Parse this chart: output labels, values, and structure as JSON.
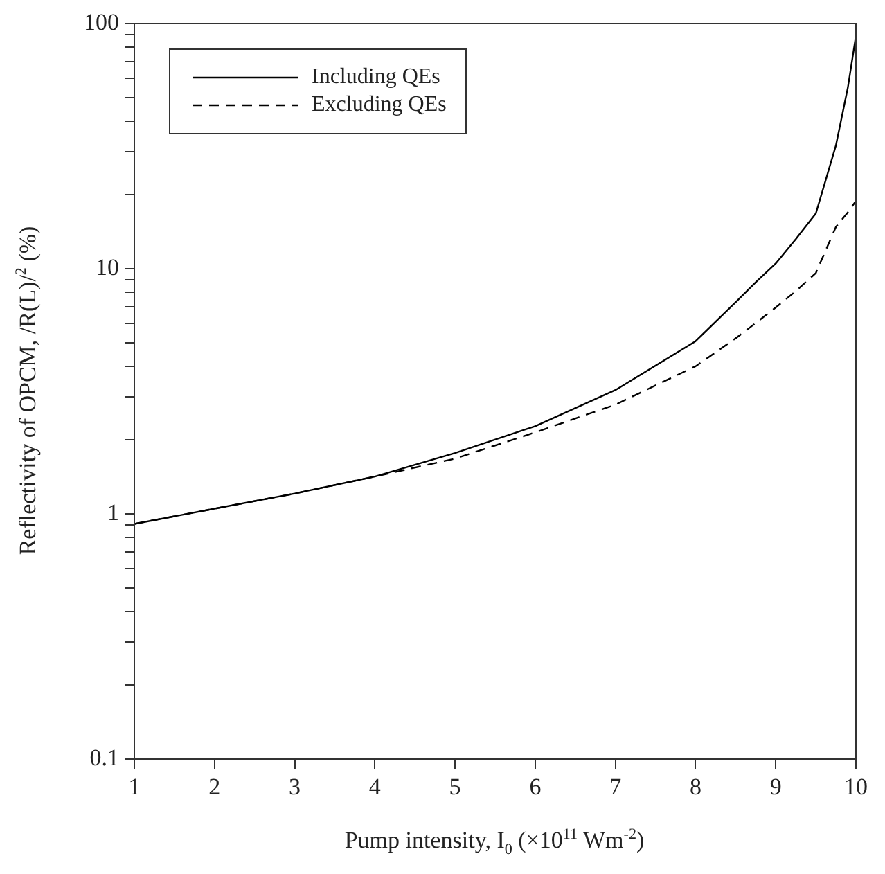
{
  "chart_data": {
    "type": "line",
    "xlabel": "Pump intensity, I$_{0}$ (×10$^{11}$ Wm$^{-2}$)",
    "ylabel": "Reflectivity of OPCM, /R(L)/$^{2}$ (%)",
    "x": [
      1,
      2,
      3,
      4,
      5,
      6,
      7,
      8,
      8.5,
      8.75,
      9,
      9.25,
      9.5,
      9.75,
      9.9,
      10
    ],
    "series": [
      {
        "name": "Including QEs",
        "color": "#000000",
        "line_style": "solid",
        "values": [
          0.91,
          1.05,
          1.21,
          1.42,
          1.77,
          2.28,
          3.2,
          5.06,
          7.3,
          8.8,
          10.5,
          13.2,
          16.8,
          31.8,
          55,
          89
        ]
      },
      {
        "name": "Excluding QEs",
        "color": "#000000",
        "line_style": "dashed",
        "values": [
          0.91,
          1.05,
          1.21,
          1.42,
          1.68,
          2.15,
          2.79,
          4.0,
          5.2,
          6.0,
          6.95,
          8.1,
          9.6,
          14.8,
          17,
          18.9
        ]
      }
    ],
    "xlim": [
      1,
      10
    ],
    "xticks": [
      1,
      2,
      3,
      4,
      5,
      6,
      7,
      8,
      9,
      10
    ],
    "ylim": [
      0.1,
      100
    ],
    "yticks": [
      0.1,
      {
        "value": 0.2,
        "label": null
      },
      {
        "value": 0.3,
        "label": null
      },
      {
        "value": 0.4,
        "label": null
      },
      {
        "value": 0.5,
        "label": null
      },
      {
        "value": 0.6,
        "label": null
      },
      {
        "value": 0.7,
        "label": null
      },
      {
        "value": 0.8,
        "label": null
      },
      {
        "value": 0.9,
        "label": null
      },
      1,
      {
        "value": 2,
        "label": null
      },
      {
        "value": 3,
        "label": null
      },
      {
        "value": 4,
        "label": null
      },
      {
        "value": 5,
        "label": null
      },
      {
        "value": 6,
        "label": null
      },
      {
        "value": 7,
        "label": null
      },
      {
        "value": 8,
        "label": null
      },
      {
        "value": 9,
        "label": null
      },
      10,
      {
        "value": 20,
        "label": null
      },
      {
        "value": 30,
        "label": null
      },
      {
        "value": 40,
        "label": null
      },
      {
        "value": 50,
        "label": null
      },
      {
        "value": 60,
        "label": null
      },
      {
        "value": 70,
        "label": null
      },
      {
        "value": 80,
        "label": null
      },
      {
        "value": 90,
        "label": null
      },
      100
    ],
    "log": "y",
    "grid": false,
    "legend": "top left",
    "marker": "none"
  }
}
